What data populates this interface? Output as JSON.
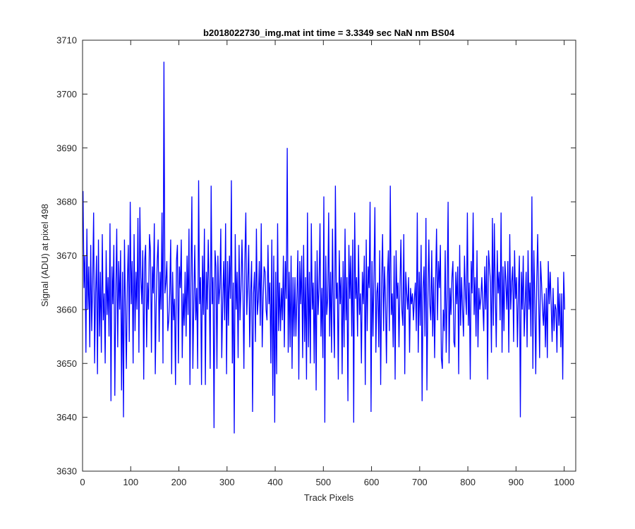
{
  "chart_data": {
    "type": "line",
    "title": "b2018022730_img.mat int time = 3.3349 sec  NaN nm BS04",
    "xlabel": "Track Pixels",
    "ylabel": "Signal (ADU) at pixel 498",
    "xlim": [
      0,
      1024
    ],
    "ylim": [
      3630,
      3710
    ],
    "xticks": [
      0,
      100,
      200,
      300,
      400,
      500,
      600,
      700,
      800,
      900,
      1000
    ],
    "yticks": [
      3630,
      3640,
      3650,
      3660,
      3670,
      3680,
      3690,
      3700,
      3710
    ],
    "grid": false,
    "legend": "none",
    "line_color": "#0000ff",
    "series": [
      {
        "x_start": 1,
        "x_step": 2,
        "values": [
          3682,
          3664,
          3670,
          3652,
          3675,
          3660,
          3668,
          3653,
          3672,
          3656,
          3665,
          3678,
          3650,
          3663,
          3670,
          3648,
          3673,
          3655,
          3667,
          3652,
          3674,
          3658,
          3663,
          3650,
          3671,
          3659,
          3666,
          3655,
          3676,
          3643,
          3668,
          3661,
          3672,
          3644,
          3663,
          3675,
          3653,
          3669,
          3660,
          3671,
          3645,
          3667,
          3640,
          3673,
          3660,
          3649,
          3665,
          3672,
          3654,
          3680,
          3661,
          3669,
          3650,
          3674,
          3656,
          3667,
          3660,
          3677,
          3652,
          3679,
          3666,
          3661,
          3671,
          3647,
          3669,
          3672,
          3653,
          3665,
          3660,
          3674,
          3671,
          3652,
          3668,
          3663,
          3676,
          3648,
          3661,
          3669,
          3673,
          3654,
          3667,
          3660,
          3678,
          3650,
          3706,
          3663,
          3665,
          3669,
          3656,
          3658,
          3663,
          3673,
          3648,
          3667,
          3658,
          3662,
          3646,
          3669,
          3672,
          3650,
          3668,
          3664,
          3673,
          3651,
          3663,
          3657,
          3667,
          3655,
          3670,
          3659,
          3675,
          3646,
          3666,
          3681,
          3649,
          3661,
          3672,
          3658,
          3664,
          3649,
          3684,
          3661,
          3666,
          3646,
          3670,
          3659,
          3675,
          3646,
          3667,
          3660,
          3673,
          3664,
          3649,
          3683,
          3661,
          3666,
          3638,
          3671,
          3668,
          3649,
          3670,
          3661,
          3664,
          3675,
          3651,
          3661,
          3669,
          3658,
          3676,
          3648,
          3669,
          3657,
          3670,
          3662,
          3684,
          3650,
          3665,
          3637,
          3674,
          3660,
          3667,
          3651,
          3672,
          3658,
          3664,
          3673,
          3664,
          3649,
          3669,
          3678,
          3659,
          3665,
          3672,
          3653,
          3663,
          3669,
          3641,
          3663,
          3667,
          3654,
          3675,
          3659,
          3662,
          3669,
          3657,
          3676,
          3653,
          3662,
          3668,
          3667,
          3660,
          3658,
          3672,
          3661,
          3665,
          3650,
          3673,
          3644,
          3670,
          3639,
          3667,
          3648,
          3676,
          3656,
          3665,
          3656,
          3664,
          3658,
          3670,
          3653,
          3669,
          3662,
          3690,
          3652,
          3667,
          3653,
          3670,
          3649,
          3666,
          3655,
          3666,
          3655,
          3662,
          3671,
          3647,
          3669,
          3661,
          3670,
          3651,
          3672,
          3654,
          3666,
          3647,
          3678,
          3653,
          3667,
          3650,
          3676,
          3660,
          3665,
          3650,
          3669,
          3645,
          3671,
          3659,
          3664,
          3676,
          3655,
          3664,
          3651,
          3681,
          3639,
          3670,
          3659,
          3662,
          3678,
          3655,
          3667,
          3652,
          3675,
          3660,
          3651,
          3683,
          3662,
          3665,
          3647,
          3671,
          3661,
          3666,
          3648,
          3669,
          3653,
          3675,
          3658,
          3666,
          3643,
          3672,
          3662,
          3670,
          3655,
          3673,
          3639,
          3678,
          3662,
          3666,
          3655,
          3672,
          3659,
          3663,
          3650,
          3667,
          3661,
          3670,
          3646,
          3673,
          3656,
          3668,
          3664,
          3680,
          3641,
          3669,
          3655,
          3666,
          3679,
          3652,
          3663,
          3665,
          3653,
          3671,
          3646,
          3666,
          3674,
          3656,
          3668,
          3662,
          3650,
          3666,
          3671,
          3656,
          3683,
          3659,
          3663,
          3653,
          3670,
          3647,
          3671,
          3662,
          3665,
          3653,
          3664,
          3673,
          3660,
          3657,
          3674,
          3648,
          3667,
          3663,
          3660,
          3666,
          3652,
          3664,
          3661,
          3663,
          3658,
          3662,
          3665,
          3656,
          3678,
          3652,
          3667,
          3657,
          3672,
          3643,
          3664,
          3668,
          3655,
          3677,
          3645,
          3662,
          3673,
          3661,
          3658,
          3671,
          3655,
          3666,
          3651,
          3665,
          3675,
          3658,
          3669,
          3664,
          3672,
          3651,
          3649,
          3660,
          3656,
          3671,
          3652,
          3663,
          3680,
          3650,
          3664,
          3659,
          3666,
          3669,
          3654,
          3653,
          3667,
          3661,
          3668,
          3648,
          3672,
          3657,
          3666,
          3660,
          3655,
          3670,
          3663,
          3659,
          3678,
          3657,
          3665,
          3647,
          3669,
          3663,
          3678,
          3659,
          3666,
          3655,
          3671,
          3653,
          3664,
          3660,
          3662,
          3666,
          3661,
          3656,
          3668,
          3660,
          3670,
          3647,
          3671,
          3668,
          3665,
          3652,
          3677,
          3657,
          3676,
          3663,
          3653,
          3671,
          3663,
          3667,
          3658,
          3678,
          3652,
          3668,
          3656,
          3669,
          3665,
          3660,
          3669,
          3652,
          3674,
          3660,
          3665,
          3668,
          3654,
          3671,
          3662,
          3666,
          3653,
          3663,
          3670,
          3640,
          3667,
          3660,
          3670,
          3655,
          3661,
          3667,
          3653,
          3671,
          3660,
          3665,
          3655,
          3681,
          3649,
          3671,
          3662,
          3648,
          3665,
          3674,
          3662,
          3651,
          3669,
          3665,
          3660,
          3657,
          3663,
          3653,
          3664,
          3651,
          3669,
          3661,
          3667,
          3661,
          3654,
          3664,
          3656,
          3661,
          3660,
          3652,
          3666,
          3657,
          3663,
          3653,
          3663,
          3647,
          3667,
          3660
        ]
      }
    ]
  }
}
